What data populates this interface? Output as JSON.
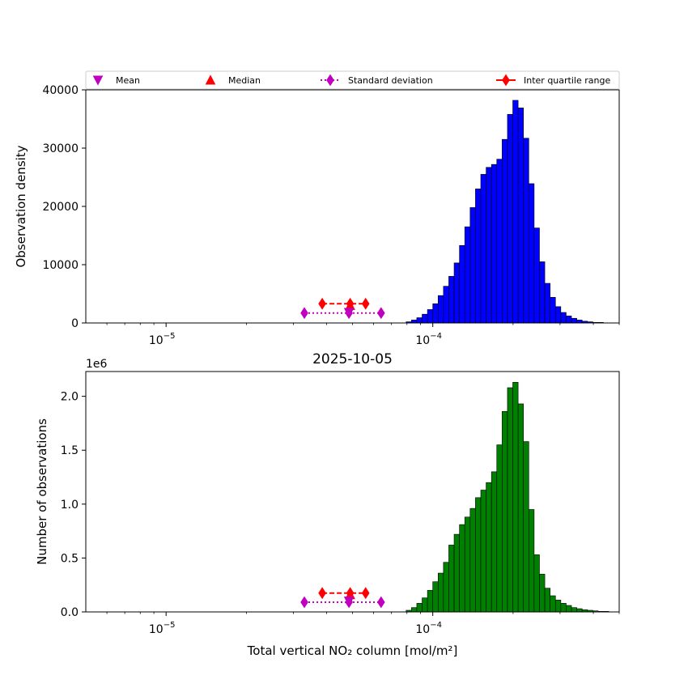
{
  "chart_data": [
    {
      "type": "bar",
      "xscale": "log",
      "xlim": [
        5e-06,
        0.0005
      ],
      "ylim": [
        0,
        40000
      ],
      "xlabel": "",
      "ylabel": "Observation density",
      "title": "",
      "colors": {
        "bar_fill": "#0000ff",
        "bar_edge": "#000000"
      },
      "x_ticks": [
        {
          "value": 1e-05,
          "base": "10",
          "exp": "−5"
        },
        {
          "value": 0.0001,
          "base": "10",
          "exp": "−4"
        }
      ],
      "y_ticks": [
        {
          "value": 0,
          "label": "0"
        },
        {
          "value": 10000,
          "label": "10000"
        },
        {
          "value": 20000,
          "label": "20000"
        },
        {
          "value": 30000,
          "label": "30000"
        },
        {
          "value": 40000,
          "label": "40000"
        }
      ],
      "bins_log10": {
        "start": -5.3,
        "width": 0.02
      },
      "values": [
        0,
        0,
        0,
        0,
        0,
        0,
        0,
        0,
        0,
        0,
        0,
        0,
        0,
        0,
        0,
        0,
        0,
        0,
        0,
        0,
        0,
        0,
        0,
        0,
        0,
        0,
        0,
        0,
        0,
        0,
        0,
        0,
        0,
        0,
        0,
        0,
        0,
        0,
        0,
        0,
        0,
        0,
        0,
        0,
        0,
        0,
        0,
        0,
        0,
        0,
        0,
        0,
        0,
        0,
        0,
        0,
        0,
        0,
        0,
        0,
        200,
        500,
        900,
        1500,
        2300,
        3300,
        4700,
        6300,
        8000,
        10300,
        13300,
        16500,
        19800,
        23000,
        25500,
        26700,
        27200,
        28100,
        31500,
        35800,
        38200,
        36900,
        31700,
        23900,
        16300,
        10500,
        6800,
        4400,
        2800,
        1800,
        1200,
        800,
        500,
        300,
        200,
        100,
        100,
        0,
        0,
        0,
        0,
        0,
        0,
        0,
        0,
        0,
        0,
        0,
        0,
        0,
        0,
        0,
        0,
        0,
        0,
        0,
        0,
        0,
        0,
        0,
        0,
        0,
        0,
        0,
        0,
        0,
        0,
        0,
        0,
        0,
        0,
        0,
        0,
        0,
        0,
        0,
        0,
        0,
        0,
        0,
        0,
        0,
        0,
        0,
        0,
        0
      ],
      "markers": {
        "mean": {
          "x": 4.85e-05,
          "y": 1800
        },
        "median": {
          "x": 4.9e-05,
          "y": 3000
        },
        "std": {
          "x": [
            3.3e-05,
            4.85e-05,
            6.4e-05
          ],
          "y": 1700
        },
        "iqr": {
          "x": [
            3.85e-05,
            4.9e-05,
            5.6e-05
          ],
          "y": 3300
        }
      },
      "legend": {
        "placement": "top, above axes",
        "entries": [
          {
            "key": "mean",
            "label": "Mean",
            "color": "#bf00bf",
            "marker": "triangle-down"
          },
          {
            "key": "median",
            "label": "Median",
            "color": "#ff0000",
            "marker": "triangle-up"
          },
          {
            "key": "std",
            "label": "Standard deviation",
            "color": "#bf00bf",
            "marker": "diamond",
            "line": "dotted"
          },
          {
            "key": "iqr",
            "label": "Inter quartile range",
            "color": "#ff0000",
            "marker": "diamond",
            "line": "solid"
          }
        ]
      }
    },
    {
      "type": "bar",
      "xscale": "log",
      "xlim": [
        5e-06,
        0.0005
      ],
      "ylim": [
        0,
        2230000
      ],
      "title": "2025-10-05",
      "xlabel": "Total vertical NO₂ column [mol/m²]",
      "ylabel": "Number of observations",
      "y_offset_label": "1e6",
      "colors": {
        "bar_fill": "#008000",
        "bar_edge": "#000000"
      },
      "x_ticks": [
        {
          "value": 1e-05,
          "base": "10",
          "exp": "−5"
        },
        {
          "value": 0.0001,
          "base": "10",
          "exp": "−4"
        }
      ],
      "y_ticks": [
        {
          "value": 0,
          "label": "0.0"
        },
        {
          "value": 500000,
          "label": "0.5"
        },
        {
          "value": 1000000,
          "label": "1.0"
        },
        {
          "value": 1500000,
          "label": "1.5"
        },
        {
          "value": 2000000,
          "label": "2.0"
        }
      ],
      "bins_log10": {
        "start": -5.3,
        "width": 0.02
      },
      "values": [
        0,
        0,
        0,
        0,
        0,
        0,
        0,
        0,
        0,
        0,
        0,
        0,
        0,
        0,
        0,
        0,
        0,
        0,
        0,
        0,
        0,
        0,
        0,
        0,
        0,
        0,
        0,
        0,
        0,
        0,
        0,
        0,
        0,
        0,
        0,
        0,
        0,
        0,
        0,
        0,
        0,
        0,
        0,
        0,
        0,
        0,
        0,
        0,
        0,
        0,
        0,
        0,
        0,
        0,
        0,
        0,
        0,
        0,
        0,
        0,
        15000,
        40000,
        80000,
        130000,
        200000,
        280000,
        360000,
        460000,
        620000,
        720000,
        810000,
        880000,
        960000,
        1060000,
        1130000,
        1200000,
        1300000,
        1550000,
        1860000,
        2080000,
        2130000,
        1930000,
        1580000,
        950000,
        530000,
        350000,
        220000,
        150000,
        110000,
        80000,
        60000,
        40000,
        30000,
        20000,
        15000,
        10000,
        5000,
        5000,
        0,
        0,
        0,
        0,
        0,
        0,
        0,
        0,
        0,
        0,
        0,
        0,
        0,
        0,
        0,
        0,
        0,
        0,
        0,
        0,
        0,
        0,
        0,
        0,
        0,
        0,
        0,
        0,
        0,
        0,
        0,
        0,
        0,
        0,
        0,
        0,
        0,
        0,
        0,
        0,
        0,
        0,
        0,
        0,
        0,
        0,
        0,
        0,
        0
      ],
      "markers": {
        "mean": {
          "x": 4.85e-05,
          "y": 100000
        },
        "median": {
          "x": 4.9e-05,
          "y": 160000
        },
        "std": {
          "x": [
            3.3e-05,
            4.85e-05,
            6.4e-05
          ],
          "y": 90000
        },
        "iqr": {
          "x": [
            3.85e-05,
            4.9e-05,
            5.6e-05
          ],
          "y": 175000
        }
      }
    }
  ]
}
